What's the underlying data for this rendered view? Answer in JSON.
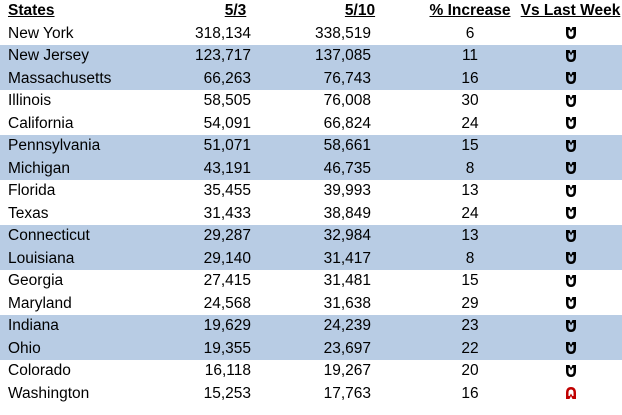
{
  "table": {
    "headers": {
      "state": "States",
      "d1": "5/3",
      "d2": "5/10",
      "pct": "% Increase",
      "trend": "Vs Last Week"
    },
    "colors": {
      "band": "#b8cce4",
      "icon_down": "#000000",
      "icon_up": "#c00000"
    },
    "rows": [
      {
        "state": "New York",
        "d1": "318,134",
        "d2": "338,519",
        "pct": "6",
        "trend": "down",
        "band": false
      },
      {
        "state": "New Jersey",
        "d1": "123,717",
        "d2": "137,085",
        "pct": "11",
        "trend": "down",
        "band": true
      },
      {
        "state": "Massachusetts",
        "d1": "66,263",
        "d2": "76,743",
        "pct": "16",
        "trend": "down",
        "band": true
      },
      {
        "state": "Illinois",
        "d1": "58,505",
        "d2": "76,008",
        "pct": "30",
        "trend": "down",
        "band": false
      },
      {
        "state": "California",
        "d1": "54,091",
        "d2": "66,824",
        "pct": "24",
        "trend": "down",
        "band": false
      },
      {
        "state": "Pennsylvania",
        "d1": "51,071",
        "d2": "58,661",
        "pct": "15",
        "trend": "down",
        "band": true
      },
      {
        "state": "Michigan",
        "d1": "43,191",
        "d2": "46,735",
        "pct": "8",
        "trend": "down",
        "band": true
      },
      {
        "state": "Florida",
        "d1": "35,455",
        "d2": "39,993",
        "pct": "13",
        "trend": "down",
        "band": false
      },
      {
        "state": "Texas",
        "d1": "31,433",
        "d2": "38,849",
        "pct": "24",
        "trend": "down",
        "band": false
      },
      {
        "state": "Connecticut",
        "d1": "29,287",
        "d2": "32,984",
        "pct": "13",
        "trend": "down",
        "band": true
      },
      {
        "state": "Louisiana",
        "d1": "29,140",
        "d2": "31,417",
        "pct": "8",
        "trend": "down",
        "band": true
      },
      {
        "state": "Georgia",
        "d1": "27,415",
        "d2": "31,481",
        "pct": "15",
        "trend": "down",
        "band": false
      },
      {
        "state": "Maryland",
        "d1": "24,568",
        "d2": "31,638",
        "pct": "29",
        "trend": "down",
        "band": false
      },
      {
        "state": "Indiana",
        "d1": "19,629",
        "d2": "24,239",
        "pct": "23",
        "trend": "down",
        "band": true
      },
      {
        "state": "Ohio",
        "d1": "19,355",
        "d2": "23,697",
        "pct": "22",
        "trend": "down",
        "band": true
      },
      {
        "state": "Colorado",
        "d1": "16,118",
        "d2": "19,267",
        "pct": "20",
        "trend": "down",
        "band": false
      },
      {
        "state": "Washington",
        "d1": "15,253",
        "d2": "17,763",
        "pct": "16",
        "trend": "up",
        "band": false
      }
    ]
  }
}
